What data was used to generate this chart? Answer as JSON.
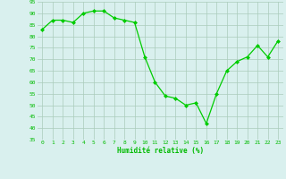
{
  "x": [
    0,
    1,
    2,
    3,
    4,
    5,
    6,
    7,
    8,
    9,
    10,
    11,
    12,
    13,
    14,
    15,
    16,
    17,
    18,
    19,
    20,
    21,
    22,
    23
  ],
  "y": [
    83,
    87,
    87,
    86,
    90,
    91,
    91,
    88,
    87,
    86,
    71,
    60,
    54,
    53,
    50,
    51,
    42,
    55,
    65,
    69,
    71,
    76,
    71,
    78
  ],
  "line_color": "#00cc00",
  "marker_color": "#00cc00",
  "bg_color": "#d9f0ee",
  "grid_color": "#aaccbb",
  "xlabel": "Humidité relative (%)",
  "xlabel_color": "#00bb00",
  "tick_color": "#00bb00",
  "ylim": [
    35,
    95
  ],
  "yticks": [
    35,
    40,
    45,
    50,
    55,
    60,
    65,
    70,
    75,
    80,
    85,
    90,
    95
  ],
  "xticks": [
    0,
    1,
    2,
    3,
    4,
    5,
    6,
    7,
    8,
    9,
    10,
    11,
    12,
    13,
    14,
    15,
    16,
    17,
    18,
    19,
    20,
    21,
    22,
    23
  ],
  "xtick_labels": [
    "0",
    "1",
    "2",
    "3",
    "4",
    "5",
    "6",
    "7",
    "8",
    "9",
    "10",
    "11",
    "12",
    "13",
    "14",
    "15",
    "16",
    "17",
    "18",
    "19",
    "20",
    "21",
    "22",
    "23"
  ]
}
